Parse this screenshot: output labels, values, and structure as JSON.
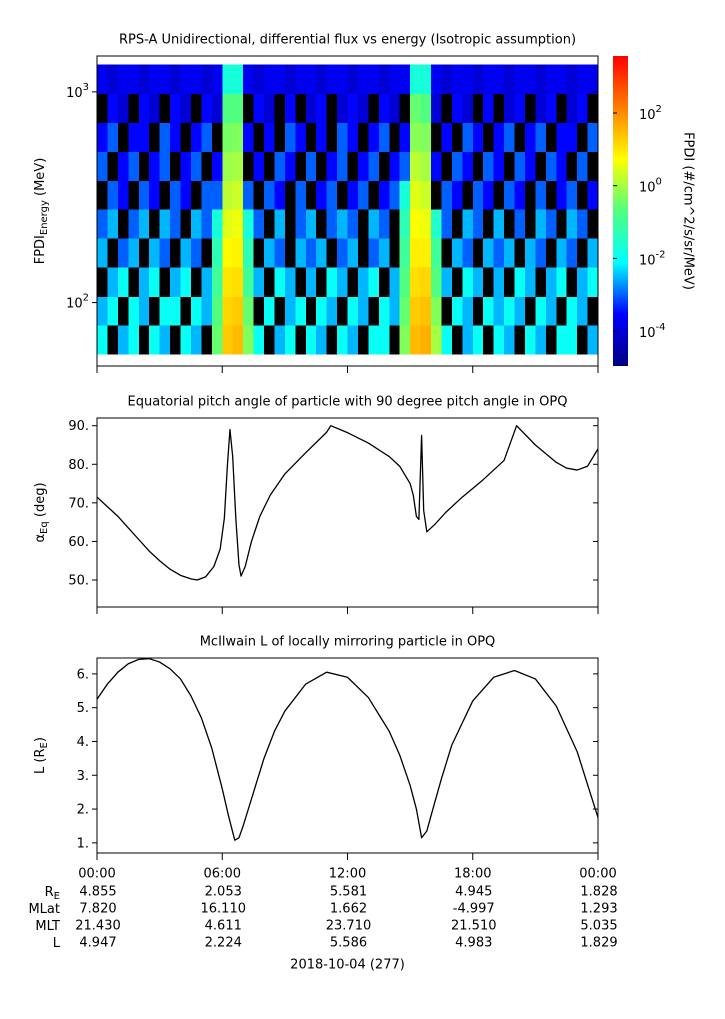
{
  "chart_data": [
    {
      "type": "heatmap",
      "title": "RPS-A Unidirectional, differential flux vs energy (Isotropic assumption)",
      "ylabel": [
        "FPDI",
        "Energy",
        " (MeV)"
      ],
      "xlim": [
        0,
        24
      ],
      "ylim": [
        50,
        1480
      ],
      "log_y": true,
      "yticks": [
        {
          "value": 100,
          "label": "10",
          "exponent": "2"
        },
        {
          "value": 1000,
          "label": "10",
          "exponent": "3"
        }
      ],
      "x_edges": [
        0,
        0.5,
        1,
        1.5,
        2,
        2.5,
        3,
        3.5,
        4,
        4.5,
        5,
        5.5,
        6,
        6.5,
        7,
        7.5,
        8,
        8.5,
        9,
        9.5,
        10,
        10.5,
        11,
        11.5,
        12,
        12.5,
        13,
        13.5,
        14,
        14.5,
        15,
        15.5,
        16,
        16.5,
        17,
        17.5,
        18,
        18.5,
        19,
        19.5,
        20,
        20.5,
        21,
        21.5,
        22,
        22.5,
        23,
        23.5,
        24
      ],
      "y_edges": [
        57,
        78,
        107,
        147,
        202,
        277,
        380,
        522,
        716,
        983,
        1350
      ],
      "values": [
        [
          0.01,
          null,
          0.003,
          0.01,
          null,
          0.01,
          0.003,
          null,
          0.01,
          0.003,
          null,
          0.3,
          20,
          30,
          0.5,
          0.01,
          null,
          0.003,
          0.01,
          null,
          0.01,
          0.003,
          null,
          0.01,
          0.003,
          null,
          0.01,
          0.01,
          null,
          0.5,
          30,
          40,
          1,
          0.01,
          null,
          0.003,
          0.01,
          null,
          0.01,
          0.003,
          null,
          0.01,
          0.003,
          null,
          0.01,
          0.01,
          null,
          0.003
        ],
        [
          0.003,
          0.01,
          null,
          0.01,
          0.003,
          null,
          0.01,
          0.01,
          null,
          0.01,
          0.003,
          0.2,
          15,
          20,
          0.3,
          null,
          0.01,
          null,
          0.003,
          0.01,
          null,
          0.01,
          0.003,
          null,
          0.01,
          0.003,
          null,
          0.01,
          0.003,
          0.3,
          20,
          25,
          0.5,
          null,
          0.01,
          0.003,
          null,
          0.01,
          0.003,
          0.01,
          0.003,
          null,
          0.01,
          0.003,
          null,
          0.01,
          0.003,
          null
        ],
        [
          null,
          0.003,
          0.01,
          null,
          0.003,
          0.01,
          null,
          0.003,
          0.01,
          null,
          0.003,
          0.1,
          10,
          12,
          0.1,
          0.003,
          null,
          0.01,
          0.003,
          null,
          0.003,
          null,
          0.01,
          0.003,
          null,
          0.003,
          0.01,
          null,
          0.003,
          0.2,
          12,
          15,
          0.2,
          0.003,
          null,
          0.01,
          0.003,
          null,
          0.003,
          null,
          0.01,
          0.003,
          null,
          0.003,
          0.01,
          null,
          0.003,
          0.01
        ],
        [
          0.003,
          null,
          0.001,
          0.003,
          null,
          0.003,
          0.001,
          null,
          0.003,
          0.001,
          null,
          0.05,
          6,
          7,
          0.05,
          null,
          0.003,
          0.001,
          null,
          0.003,
          0.001,
          0.003,
          null,
          0.001,
          0.003,
          null,
          0.001,
          0.003,
          null,
          0.1,
          8,
          8,
          0.1,
          null,
          0.003,
          0.001,
          null,
          0.003,
          0.001,
          0.003,
          null,
          0.003,
          0.001,
          null,
          0.003,
          0.001,
          null,
          0.003
        ],
        [
          0.001,
          0.003,
          null,
          0.001,
          0.003,
          null,
          0.003,
          0.001,
          null,
          0.003,
          0.001,
          0.02,
          3,
          4,
          0.02,
          0.001,
          null,
          0.003,
          null,
          0.001,
          0.003,
          null,
          0.001,
          0.003,
          0.001,
          null,
          0.003,
          0.001,
          null,
          0.05,
          5,
          4,
          0.03,
          0.001,
          null,
          0.003,
          0.001,
          null,
          0.003,
          null,
          0.001,
          null,
          0.003,
          0.001,
          null,
          0.003,
          0.001,
          null
        ],
        [
          null,
          0.001,
          0.0003,
          null,
          0.001,
          0.0003,
          null,
          0.001,
          0.0003,
          null,
          0.001,
          0.001,
          1.5,
          2,
          0.001,
          null,
          0.001,
          0.0003,
          null,
          0.001,
          null,
          0.0003,
          0.001,
          null,
          0.0003,
          0.001,
          null,
          0.0003,
          0.001,
          0.02,
          3,
          2,
          null,
          0.001,
          0.0003,
          null,
          0.001,
          0.0003,
          null,
          0.001,
          0.0003,
          null,
          0.001,
          null,
          0.0003,
          0.001,
          null,
          0.0003
        ],
        [
          0.001,
          null,
          0.0003,
          0.001,
          null,
          0.0003,
          0.001,
          null,
          0.0003,
          0.001,
          null,
          0.0003,
          0.8,
          1,
          null,
          0.0003,
          null,
          0.001,
          0.0003,
          null,
          0.001,
          null,
          0.0003,
          0.001,
          null,
          0.0003,
          0.001,
          null,
          0.0003,
          0.001,
          1.5,
          1,
          0.0003,
          null,
          0.001,
          0.0003,
          null,
          0.001,
          0.0003,
          null,
          0.001,
          0.0003,
          null,
          0.001,
          0.0003,
          null,
          0.001,
          null
        ],
        [
          0.0003,
          0.001,
          null,
          0.0003,
          0.0003,
          null,
          0.001,
          0.0003,
          null,
          0.0003,
          0.001,
          null,
          0.4,
          0.5,
          0.0003,
          null,
          0.0003,
          null,
          0.001,
          0.0003,
          null,
          0.0003,
          null,
          0.001,
          0.0003,
          null,
          0.0003,
          0.001,
          null,
          0.0003,
          0.6,
          0.5,
          null,
          0.0003,
          null,
          0.001,
          0.0003,
          null,
          0.0003,
          0.001,
          null,
          0.0003,
          0.001,
          null,
          0.0003,
          0.0003,
          null,
          0.001
        ],
        [
          null,
          0.0003,
          0.0001,
          null,
          0.0003,
          0.0001,
          null,
          0.0003,
          0.0001,
          null,
          0.0003,
          0.0001,
          0.2,
          0.2,
          null,
          0.0003,
          0.0001,
          null,
          0.0003,
          null,
          0.0001,
          0.0003,
          null,
          0.0001,
          0.0003,
          0.0001,
          null,
          0.0003,
          0.0001,
          null,
          0.3,
          0.2,
          0.0001,
          null,
          0.0003,
          0.0001,
          null,
          0.0003,
          null,
          0.0001,
          0.0003,
          null,
          0.0001,
          0.0003,
          null,
          0.0001,
          0.0003,
          null
        ],
        [
          0.0002,
          0.0001,
          0.0002,
          0.0002,
          0.0001,
          0.0002,
          0.0002,
          0.0001,
          0.0002,
          0.0002,
          0.0001,
          0.0002,
          0.02,
          0.02,
          0.0002,
          0.0001,
          0.0002,
          0.0002,
          0.0001,
          0.0002,
          0.0002,
          0.0001,
          0.0002,
          0.0002,
          0.0001,
          0.0002,
          0.0002,
          0.0001,
          0.0002,
          0.0002,
          0.02,
          0.02,
          0.0002,
          0.0001,
          0.0002,
          0.0002,
          0.0001,
          0.0002,
          0.0002,
          0.0001,
          0.0002,
          0.0002,
          0.0001,
          0.0002,
          0.0002,
          0.0001,
          0.0002,
          0.0002
        ]
      ],
      "colorbar": {
        "label": "FPDI (#/cm^2/s/sr/MeV)",
        "zlim": [
          1.1e-05,
          3700
        ],
        "log": true,
        "zticks": [
          {
            "value": 100,
            "label": "10",
            "exponent": "2"
          },
          {
            "value": 1,
            "label": "10",
            "exponent": "0"
          },
          {
            "value": 0.01,
            "label": "10",
            "exponent": "-2"
          },
          {
            "value": 0.0001,
            "label": "10",
            "exponent": "-4"
          }
        ],
        "colormap": [
          "#00007f",
          "#0000ff",
          "#00ffff",
          "#50ff80",
          "#ffff00",
          "#ff7f00",
          "#ff0000"
        ],
        "missing_color": "#000000"
      }
    },
    {
      "type": "line",
      "title": "Equatorial pitch angle of particle with 90 degree pitch angle in OPQ",
      "ylabel": [
        "α",
        "Eq",
        " (deg)"
      ],
      "xlim": [
        0,
        24
      ],
      "ylim": [
        43,
        92
      ],
      "yticks": [
        {
          "value": 50,
          "label": "50."
        },
        {
          "value": 60,
          "label": "60."
        },
        {
          "value": 70,
          "label": "70."
        },
        {
          "value": 80,
          "label": "80."
        },
        {
          "value": 90,
          "label": "90."
        }
      ],
      "color": "#000000",
      "x": [
        0,
        0.5,
        1,
        1.5,
        2,
        2.5,
        3,
        3.5,
        4,
        4.5,
        4.8,
        5.2,
        5.6,
        5.9,
        6.1,
        6.25,
        6.37,
        6.5,
        6.65,
        6.8,
        6.9,
        7.1,
        7.4,
        7.8,
        8.3,
        9,
        10,
        11,
        11.2,
        12,
        13,
        14,
        14.5,
        15,
        15.15,
        15.3,
        15.42,
        15.55,
        15.65,
        15.8,
        16.2,
        16.7,
        17.5,
        18.5,
        19.5,
        20.1,
        21,
        22,
        22.5,
        23,
        23.5,
        24
      ],
      "values": [
        71.5,
        69,
        66.5,
        63.5,
        60.5,
        57.5,
        55,
        52.8,
        51.2,
        50.3,
        50,
        50.8,
        53.5,
        58,
        66,
        80,
        89,
        82,
        66,
        54,
        51,
        53.5,
        60,
        66.5,
        72,
        77.5,
        83,
        88.3,
        90,
        88.2,
        85.5,
        82,
        79.5,
        75,
        72,
        66.5,
        65.7,
        87.5,
        68,
        62.5,
        64.5,
        67.5,
        71.5,
        76,
        81,
        90,
        85,
        80.5,
        79,
        78.5,
        79.5,
        84
      ]
    },
    {
      "type": "line",
      "title": "McIlwain L of locally mirroring particle in OPQ",
      "ylabel": [
        "L (R",
        "E",
        ")"
      ],
      "xlim": [
        0,
        24
      ],
      "ylim": [
        0.7,
        6.47
      ],
      "xticks": [
        {
          "value": 0,
          "label": "00:00"
        },
        {
          "value": 6,
          "label": "06:00"
        },
        {
          "value": 12,
          "label": "12:00"
        },
        {
          "value": 18,
          "label": "18:00"
        },
        {
          "value": 24,
          "label": "00:00"
        }
      ],
      "yticks": [
        {
          "value": 1,
          "label": "1."
        },
        {
          "value": 2,
          "label": "2."
        },
        {
          "value": 3,
          "label": "3."
        },
        {
          "value": 4,
          "label": "4."
        },
        {
          "value": 5,
          "label": "5."
        },
        {
          "value": 6,
          "label": "6."
        }
      ],
      "color": "#000000",
      "x": [
        0,
        0.5,
        1,
        1.5,
        2,
        2.5,
        3,
        3.5,
        4,
        4.5,
        5,
        5.5,
        6,
        6.3,
        6.6,
        6.8,
        7,
        7.5,
        8,
        8.5,
        9,
        10,
        11,
        12,
        13,
        14,
        14.5,
        15,
        15.3,
        15.55,
        15.8,
        16,
        16.5,
        17,
        18,
        19,
        20,
        21,
        22,
        23,
        24
      ],
      "values": [
        5.25,
        5.7,
        6.05,
        6.3,
        6.43,
        6.45,
        6.35,
        6.15,
        5.85,
        5.35,
        4.7,
        3.8,
        2.6,
        1.8,
        1.08,
        1.15,
        1.5,
        2.5,
        3.5,
        4.3,
        4.9,
        5.7,
        6.05,
        5.9,
        5.3,
        4.3,
        3.6,
        2.7,
        2.0,
        1.15,
        1.35,
        1.8,
        2.9,
        3.9,
        5.2,
        5.9,
        6.1,
        5.85,
        5.05,
        3.7,
        1.75
      ]
    }
  ],
  "ephemeris": {
    "rows": [
      {
        "label": "R",
        "sub": "E",
        "values": [
          "4.855",
          "2.053",
          "5.581",
          "4.945",
          "1.828"
        ]
      },
      {
        "label": "MLat",
        "values": [
          "7.820",
          "16.110",
          "1.662",
          "-4.997",
          "1.293"
        ]
      },
      {
        "label": "MLT",
        "values": [
          "21.430",
          "4.611",
          "23.710",
          "21.510",
          "5.035"
        ]
      },
      {
        "label": "L",
        "values": [
          "4.947",
          "2.224",
          "5.586",
          "4.983",
          "1.829"
        ]
      }
    ],
    "date": "2018-10-04 (277)"
  }
}
